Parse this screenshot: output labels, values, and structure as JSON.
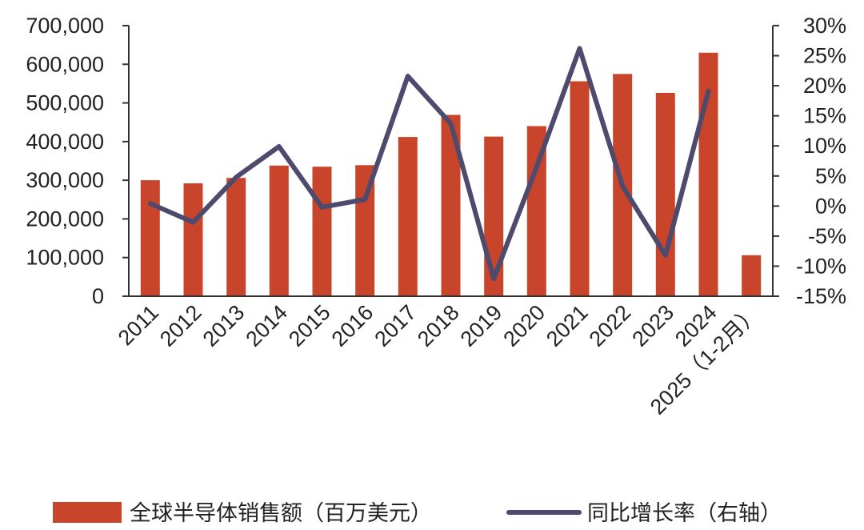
{
  "chart_data": {
    "type": "bar",
    "categories": [
      "2011",
      "2012",
      "2013",
      "2014",
      "2015",
      "2016",
      "2017",
      "2018",
      "2019",
      "2020",
      "2021",
      "2022",
      "2023",
      "2024",
      "2025（1-2月）"
    ],
    "series": [
      {
        "name": "全球半导体销售额（百万美元）",
        "type": "bar",
        "axis": "left",
        "color": "#C8442A",
        "values": [
          300000,
          292000,
          306000,
          338000,
          335000,
          339000,
          412000,
          469000,
          413000,
          440000,
          556000,
          575000,
          526000,
          630000,
          106000
        ]
      },
      {
        "name": "同比增长率（右轴）",
        "type": "line",
        "axis": "right",
        "color": "#4D4A6E",
        "values": [
          0.4,
          -2.7,
          4.8,
          9.9,
          -0.2,
          1.1,
          21.6,
          13.7,
          -12.1,
          6.5,
          26.2,
          3.3,
          -8.2,
          19.1,
          null
        ]
      }
    ],
    "y_left": {
      "ylim": [
        0,
        700000
      ],
      "ticks": [
        0,
        100000,
        200000,
        300000,
        400000,
        500000,
        600000,
        700000
      ],
      "tick_labels": [
        "0",
        "100,000",
        "200,000",
        "300,000",
        "400,000",
        "500,000",
        "600,000",
        "700,000"
      ]
    },
    "y_right": {
      "ylim": [
        -15,
        30
      ],
      "ticks": [
        -15,
        -10,
        -5,
        0,
        5,
        10,
        15,
        20,
        25,
        30
      ],
      "tick_labels": [
        "-15%",
        "-10%",
        "-5%",
        "0%",
        "5%",
        "10%",
        "15%",
        "20%",
        "25%",
        "30%"
      ]
    },
    "grid": false,
    "legend_position": "bottom"
  }
}
